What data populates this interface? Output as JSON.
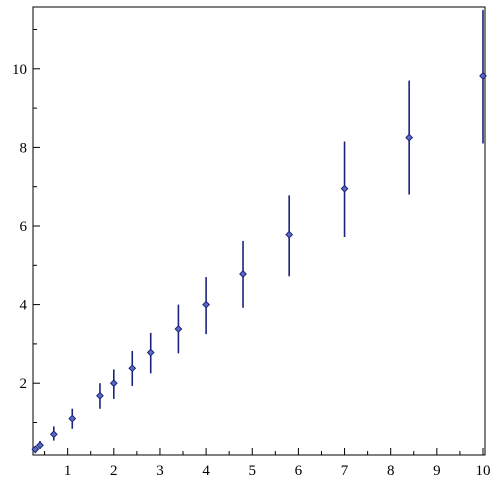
{
  "chart_data": {
    "type": "scatter",
    "title": "",
    "xlabel": "",
    "ylabel": "",
    "xlim": [
      0.3,
      10
    ],
    "ylim": [
      0.3,
      11.5
    ],
    "x_ticks": [
      1,
      2,
      3,
      4,
      5,
      6,
      7,
      8,
      9,
      10
    ],
    "y_ticks": [
      2,
      4,
      6,
      8,
      10
    ],
    "grid": false,
    "legend": "none",
    "marker": "diamond",
    "color": "#1a237e",
    "series": [
      {
        "points": [
          {
            "x": 0.3,
            "y": 0.32,
            "err_low": 0.22,
            "err_high": 0.4
          },
          {
            "x": 0.4,
            "y": 0.42,
            "err_low": 0.33,
            "err_high": 0.53
          },
          {
            "x": 0.7,
            "y": 0.7,
            "err_low": 0.54,
            "err_high": 0.9
          },
          {
            "x": 1.1,
            "y": 1.1,
            "err_low": 0.84,
            "err_high": 1.35
          },
          {
            "x": 1.7,
            "y": 1.68,
            "err_low": 1.35,
            "err_high": 2.0
          },
          {
            "x": 2.0,
            "y": 2.0,
            "err_low": 1.6,
            "err_high": 2.35
          },
          {
            "x": 2.4,
            "y": 2.38,
            "err_low": 1.93,
            "err_high": 2.82
          },
          {
            "x": 2.8,
            "y": 2.78,
            "err_low": 2.25,
            "err_high": 3.28
          },
          {
            "x": 3.4,
            "y": 3.38,
            "err_low": 2.76,
            "err_high": 4.0
          },
          {
            "x": 4.0,
            "y": 4.0,
            "err_low": 3.25,
            "err_high": 4.7
          },
          {
            "x": 4.8,
            "y": 4.78,
            "err_low": 3.92,
            "err_high": 5.62
          },
          {
            "x": 5.8,
            "y": 5.78,
            "err_low": 4.72,
            "err_high": 6.78
          },
          {
            "x": 7.0,
            "y": 6.95,
            "err_low": 5.72,
            "err_high": 8.15
          },
          {
            "x": 8.4,
            "y": 8.25,
            "err_low": 6.8,
            "err_high": 9.7
          },
          {
            "x": 10.0,
            "y": 9.82,
            "err_low": 8.1,
            "err_high": 11.5
          }
        ]
      }
    ]
  }
}
